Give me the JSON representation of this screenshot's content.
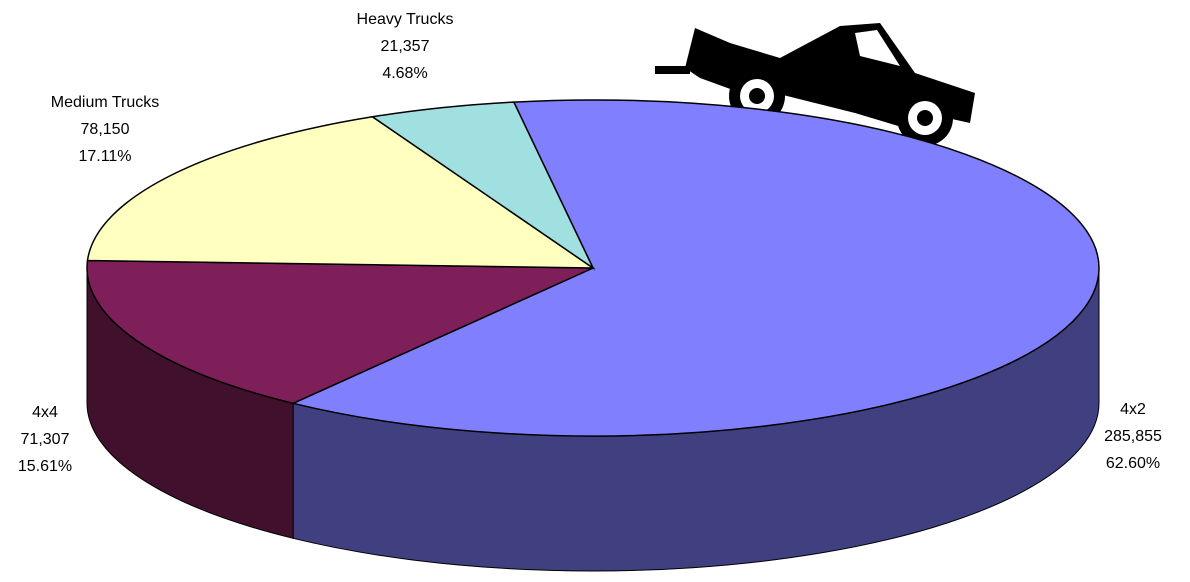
{
  "chart_data": {
    "type": "pie3d",
    "categories": [
      "4x2",
      "4x4",
      "Medium Trucks",
      "Heavy Trucks"
    ],
    "values": [
      285855,
      71307,
      78150,
      21357
    ],
    "value_labels": [
      "285,855",
      "71,307",
      "78,150",
      "21,357"
    ],
    "percents": [
      62.6,
      15.61,
      17.11,
      4.68
    ],
    "percent_labels": [
      "62.60%",
      "15.61%",
      "17.11%",
      "4.68%"
    ],
    "colors": [
      "#8080ff",
      "#7f1f5a",
      "#ffffc0",
      "#a0e0e0"
    ]
  }
}
